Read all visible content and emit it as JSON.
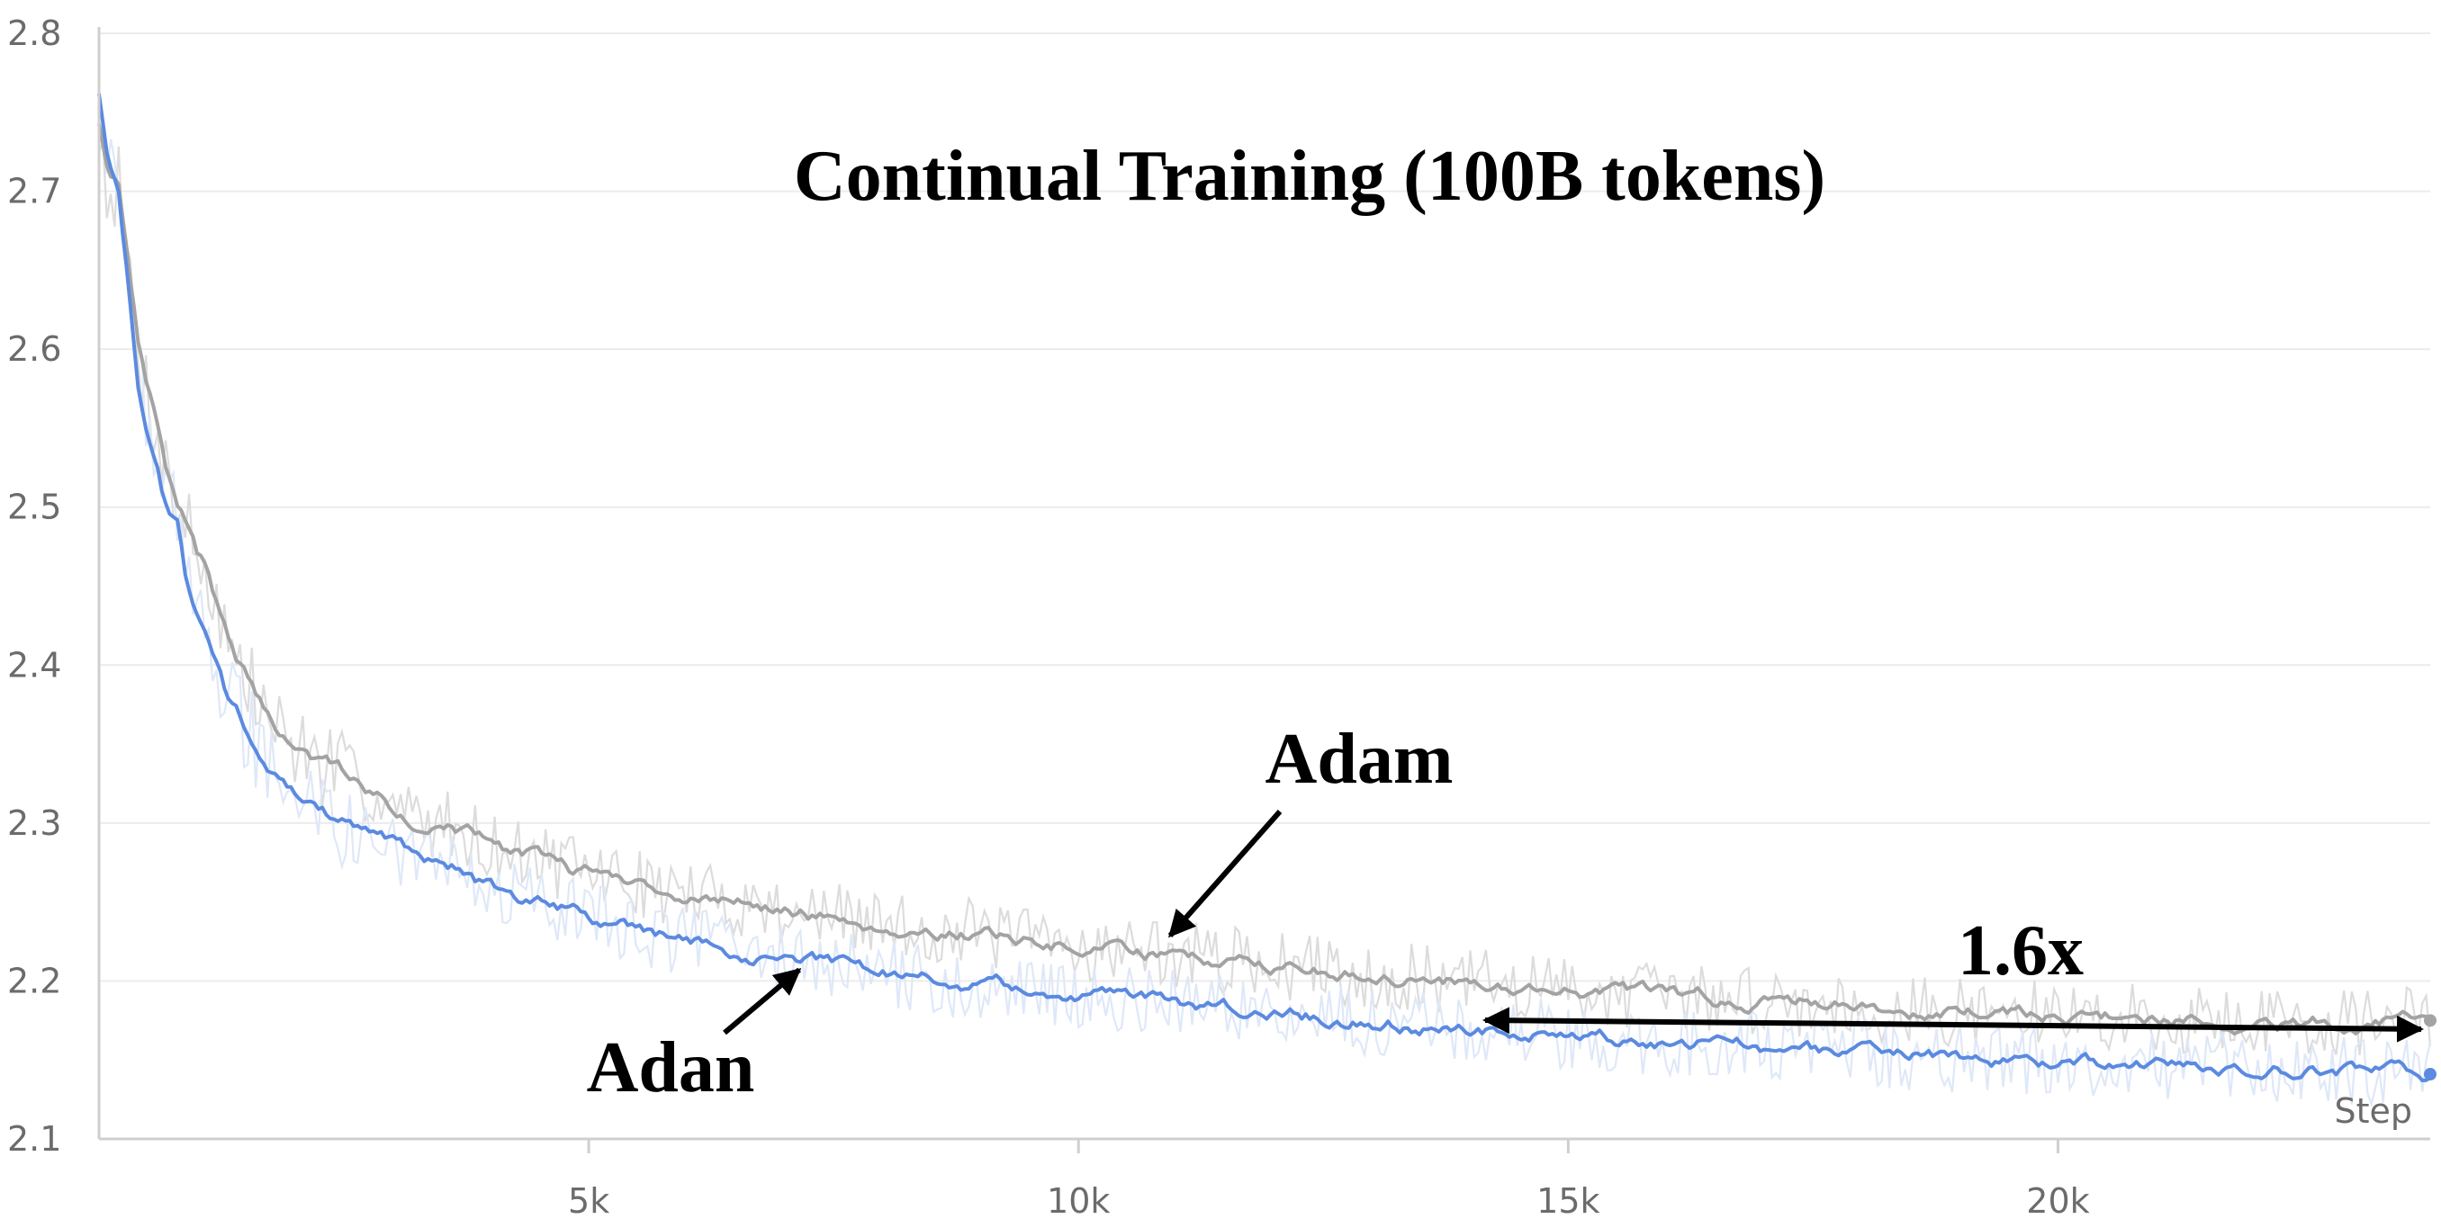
{
  "chart_data": {
    "type": "line",
    "title": "Continual Training (100B tokens)",
    "xlabel": "Step",
    "ylabel": "",
    "xlim": [
      0,
      23800
    ],
    "ylim": [
      2.1,
      2.8
    ],
    "xticks": [
      {
        "value": 5000,
        "label": "5k"
      },
      {
        "value": 10000,
        "label": "10k"
      },
      {
        "value": 15000,
        "label": "15k"
      },
      {
        "value": 20000,
        "label": "20k"
      }
    ],
    "yticks": [
      {
        "value": 2.1,
        "label": "2.1"
      },
      {
        "value": 2.2,
        "label": "2.2"
      },
      {
        "value": 2.3,
        "label": "2.3"
      },
      {
        "value": 2.4,
        "label": "2.4"
      },
      {
        "value": 2.5,
        "label": "2.5"
      },
      {
        "value": 2.6,
        "label": "2.6"
      },
      {
        "value": 2.7,
        "label": "2.7"
      },
      {
        "value": 2.8,
        "label": "2.8"
      }
    ],
    "grid": true,
    "series": [
      {
        "name": "Adam",
        "color": "#a3a3a3",
        "raw_color": "#dcdcdc",
        "x": [
          0,
          80,
          200,
          300,
          400,
          500,
          600,
          700,
          800,
          900,
          1000,
          1100,
          1200,
          1300,
          1400,
          1500,
          1600,
          1800,
          2000,
          2200,
          2500,
          2800,
          3000,
          3300,
          3600,
          3900,
          4200,
          4500,
          4800,
          5000,
          5300,
          5600,
          6000,
          6500,
          7000,
          7500,
          8000,
          8500,
          9000,
          9500,
          10000,
          10500,
          11000,
          11500,
          12000,
          12500,
          13000,
          13500,
          14000,
          14500,
          15000,
          15500,
          16000,
          16500,
          17000,
          17500,
          18000,
          18500,
          19000,
          19500,
          20000,
          20500,
          21000,
          21500,
          22000,
          22500,
          23000,
          23500,
          23800
        ],
        "y": [
          2.74,
          2.71,
          2.7,
          2.65,
          2.6,
          2.57,
          2.55,
          2.52,
          2.5,
          2.49,
          2.47,
          2.46,
          2.44,
          2.42,
          2.4,
          2.39,
          2.38,
          2.36,
          2.35,
          2.34,
          2.33,
          2.32,
          2.31,
          2.3,
          2.3,
          2.29,
          2.28,
          2.28,
          2.27,
          2.27,
          2.265,
          2.26,
          2.255,
          2.25,
          2.245,
          2.24,
          2.235,
          2.232,
          2.23,
          2.225,
          2.222,
          2.22,
          2.217,
          2.213,
          2.21,
          2.207,
          2.204,
          2.201,
          2.199,
          2.197,
          2.195,
          2.193,
          2.19,
          2.189,
          2.188,
          2.186,
          2.184,
          2.182,
          2.18,
          2.179,
          2.178,
          2.177,
          2.176,
          2.175,
          2.175,
          2.174,
          2.174,
          2.175,
          2.175
        ]
      },
      {
        "name": "Adan",
        "color": "#5b8ae0",
        "raw_color": "#dfe8f8",
        "x": [
          0,
          80,
          200,
          300,
          400,
          500,
          600,
          700,
          800,
          900,
          1000,
          1100,
          1200,
          1300,
          1400,
          1500,
          1600,
          1800,
          2000,
          2200,
          2500,
          2800,
          3000,
          3300,
          3600,
          3900,
          4200,
          4500,
          4800,
          5000,
          5300,
          5600,
          6000,
          6500,
          7000,
          7500,
          8000,
          8500,
          9000,
          9500,
          10000,
          10500,
          11000,
          11500,
          12000,
          12500,
          13000,
          13500,
          14000,
          14500,
          15000,
          15500,
          16000,
          16500,
          17000,
          17500,
          18000,
          18500,
          19000,
          19500,
          20000,
          20500,
          21000,
          21500,
          22000,
          22500,
          23000,
          23500,
          23800
        ],
        "y": [
          2.76,
          2.72,
          2.7,
          2.64,
          2.58,
          2.55,
          2.53,
          2.5,
          2.49,
          2.45,
          2.43,
          2.42,
          2.4,
          2.38,
          2.37,
          2.36,
          2.35,
          2.33,
          2.32,
          2.31,
          2.3,
          2.29,
          2.285,
          2.275,
          2.27,
          2.26,
          2.255,
          2.25,
          2.245,
          2.24,
          2.235,
          2.23,
          2.225,
          2.22,
          2.215,
          2.21,
          2.205,
          2.2,
          2.197,
          2.194,
          2.192,
          2.189,
          2.186,
          2.183,
          2.18,
          2.177,
          2.175,
          2.172,
          2.17,
          2.168,
          2.166,
          2.164,
          2.162,
          2.16,
          2.158,
          2.156,
          2.155,
          2.153,
          2.151,
          2.15,
          2.149,
          2.148,
          2.147,
          2.146,
          2.145,
          2.144,
          2.143,
          2.142,
          2.141
        ]
      }
    ],
    "annotations": [
      {
        "text": "Adam",
        "target": "Adam"
      },
      {
        "text": "Adan",
        "target": "Adan"
      },
      {
        "text": "1.6x"
      }
    ]
  }
}
